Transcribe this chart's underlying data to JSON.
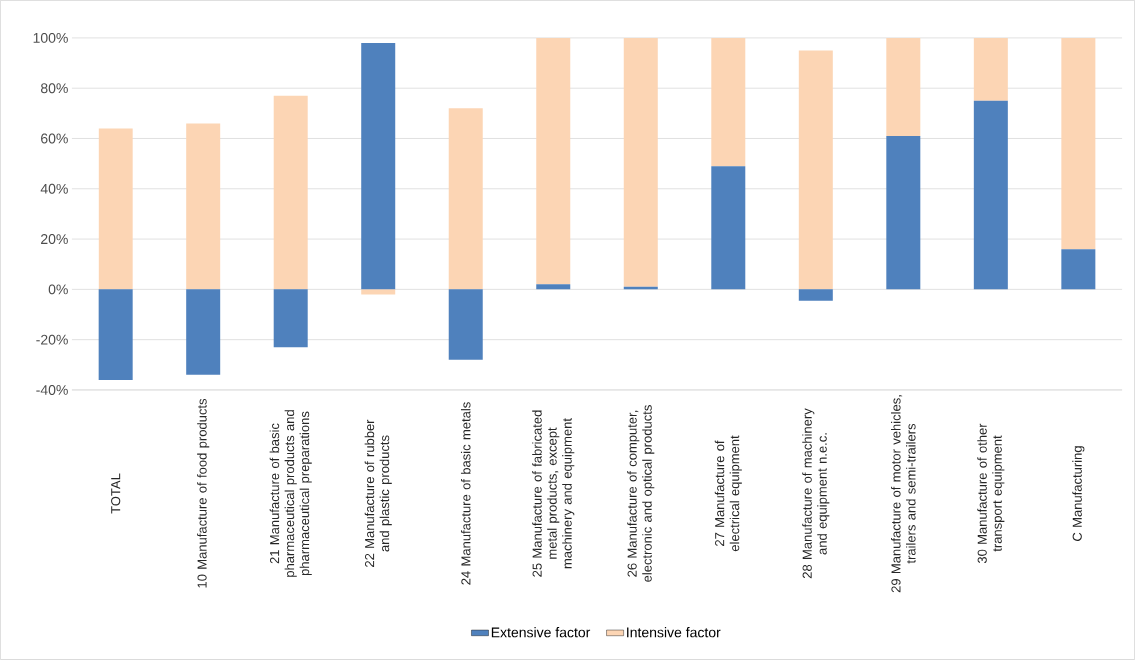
{
  "chart_data": {
    "type": "bar",
    "stacked": true,
    "categories": [
      "TOTAL",
      "10 Manufacture of food products",
      "21 Manufacture of basic pharmaceutical products and pharmaceutical preparations",
      "22 Manufacture of rubber and plastic products",
      "24 Manufacture of basic metals",
      "25 Manufacture of fabricated metal products, except machinery and equipment",
      "26 Manufacture of computer, electronic and optical products",
      "27 Manufacture of electrical equipment",
      "28 Manufacture of machinery and equipment n.e.c.",
      "29 Manufacture of motor vehicles, trailers and semi-trailers",
      "30 Manufacture of other transport equipment",
      "C Manufacturing"
    ],
    "series": [
      {
        "name": "Extensive factor",
        "color": "#4f81bd",
        "values": [
          -36,
          -34,
          -23,
          98,
          -28,
          2,
          1,
          49,
          -4.5,
          61,
          75,
          16
        ]
      },
      {
        "name": "Intensive factor",
        "color": "#fcd5b4",
        "values": [
          64,
          66,
          77,
          -2,
          72,
          98,
          99,
          51,
          95,
          39,
          25,
          84
        ]
      }
    ],
    "ylim": [
      -40,
      100
    ],
    "yticks": [
      {
        "value": -40,
        "label": "-40%"
      },
      {
        "value": -20,
        "label": "-20%"
      },
      {
        "value": 0,
        "label": "0%"
      },
      {
        "value": 20,
        "label": "20%"
      },
      {
        "value": 40,
        "label": "40%"
      },
      {
        "value": 60,
        "label": "60%"
      },
      {
        "value": 80,
        "label": "80%"
      },
      {
        "value": 100,
        "label": "100%"
      }
    ],
    "grid": "y",
    "legend": "bottom"
  }
}
